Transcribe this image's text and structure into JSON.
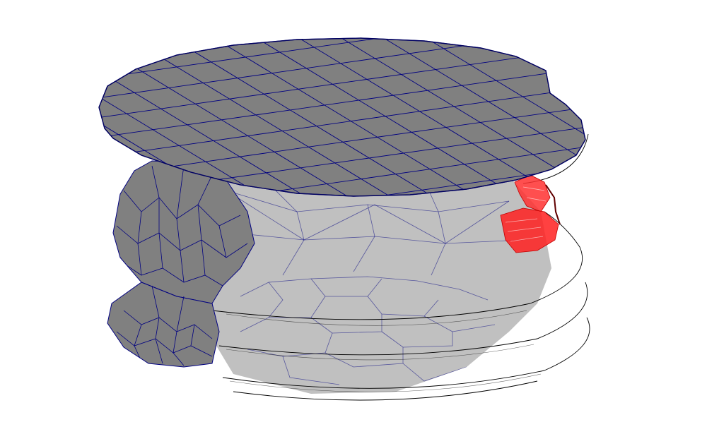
{
  "scene": {
    "background": "#ffffff",
    "colors": {
      "solid_face": "#808080",
      "translucent_face": "#c0c0c0",
      "mesh_edge": "#000080",
      "silhouette": "#000000",
      "highlight": "#ff2020",
      "highlight_edge": "#c00000"
    },
    "objects": [
      "top-cap",
      "threaded-body",
      "thread-ridges",
      "thread-flanks",
      "highlighted-elements"
    ]
  }
}
